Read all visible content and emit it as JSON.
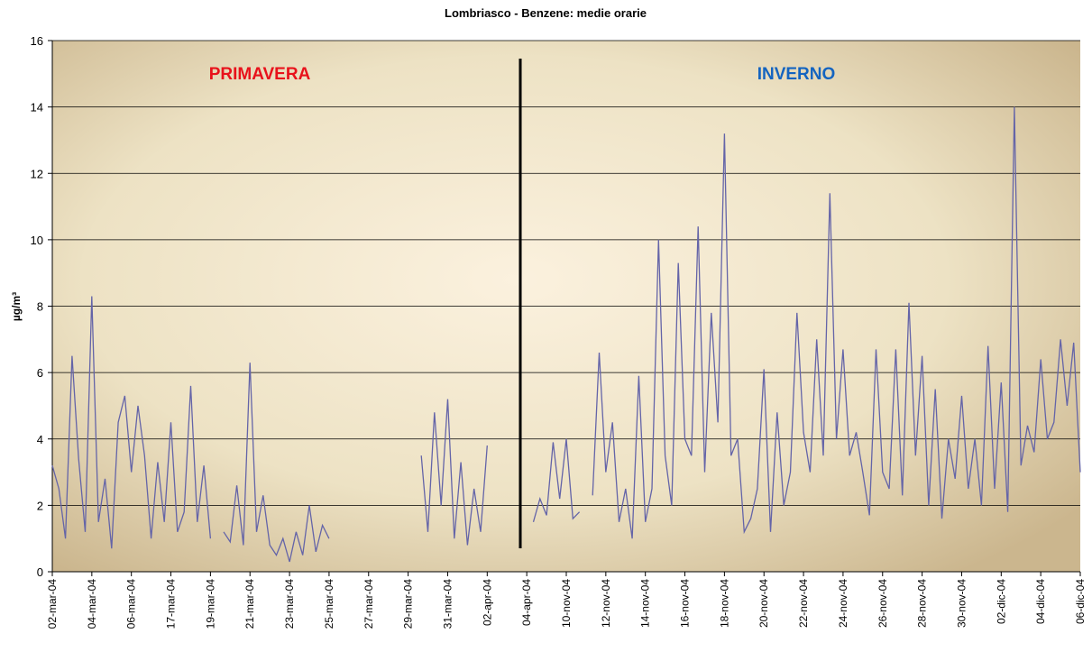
{
  "chart_data": {
    "type": "line",
    "title": "Lombriasco - Benzene: medie orarie",
    "y_label": "µg/m³",
    "annotations": [
      "PRIMAVERA",
      "INVERNO"
    ],
    "categories": [
      "02-mar-04",
      null,
      null,
      null,
      null,
      null,
      "04-mar-04",
      null,
      null,
      null,
      null,
      null,
      "06-mar-04",
      null,
      null,
      null,
      null,
      null,
      "17-mar-04",
      null,
      null,
      null,
      null,
      null,
      "19-mar-04",
      null,
      null,
      null,
      null,
      null,
      "21-mar-04",
      null,
      null,
      null,
      null,
      null,
      "23-mar-04",
      null,
      null,
      null,
      null,
      null,
      "25-mar-04",
      null,
      null,
      null,
      null,
      null,
      "27-mar-04",
      null,
      null,
      null,
      null,
      null,
      "29-mar-04",
      null,
      null,
      null,
      null,
      null,
      "31-mar-04",
      null,
      null,
      null,
      null,
      null,
      "02-apr-04",
      null,
      null,
      null,
      null,
      null,
      "04-apr-04",
      null,
      null,
      null,
      null,
      null,
      "10-nov-04",
      null,
      null,
      null,
      null,
      null,
      "12-nov-04",
      null,
      null,
      null,
      null,
      null,
      "14-nov-04",
      null,
      null,
      null,
      null,
      null,
      "16-nov-04",
      null,
      null,
      null,
      null,
      null,
      "18-nov-04",
      null,
      null,
      null,
      null,
      null,
      "20-nov-04",
      null,
      null,
      null,
      null,
      null,
      "22-nov-04",
      null,
      null,
      null,
      null,
      null,
      "24-nov-04",
      null,
      null,
      null,
      null,
      null,
      "26-nov-04",
      null,
      null,
      null,
      null,
      null,
      "28-nov-04",
      null,
      null,
      null,
      null,
      null,
      "30-nov-04",
      null,
      null,
      null,
      null,
      null,
      "02-dic-04",
      null,
      null,
      null,
      null,
      null,
      "04-dic-04",
      null,
      null,
      null,
      null,
      null,
      "06-dic-04"
    ],
    "series": [
      {
        "color": "#6464a8",
        "values": [
          3.2,
          2.5,
          1.0,
          6.5,
          3.4,
          1.2,
          8.3,
          1.5,
          2.8,
          0.7,
          4.5,
          5.3,
          3.0,
          5.0,
          3.5,
          1.0,
          3.3,
          1.5,
          4.5,
          1.2,
          1.8,
          5.6,
          1.5,
          3.2,
          1.0,
          null,
          1.2,
          0.9,
          2.6,
          0.8,
          6.3,
          1.2,
          2.3,
          0.8,
          0.5,
          1.0,
          0.3,
          1.2,
          0.5,
          2.0,
          0.6,
          1.4,
          1.0,
          null,
          null,
          null,
          null,
          null,
          null,
          null,
          null,
          null,
          null,
          null,
          null,
          null,
          3.5,
          1.2,
          4.8,
          2.0,
          5.2,
          1.0,
          3.3,
          0.8,
          2.5,
          1.2,
          3.8,
          null,
          null,
          null,
          null,
          null,
          null,
          1.5,
          2.2,
          1.7,
          3.9,
          2.2,
          4.0,
          1.6,
          1.8,
          null,
          2.3,
          6.6,
          3.0,
          4.5,
          1.5,
          2.5,
          1.0,
          5.9,
          1.5,
          2.5,
          10.0,
          3.5,
          2.0,
          9.3,
          4.0,
          3.5,
          10.4,
          3.0,
          7.8,
          4.5,
          13.2,
          3.5,
          4.0,
          1.2,
          1.6,
          2.5,
          6.1,
          1.2,
          4.8,
          2.0,
          3.0,
          7.8,
          4.2,
          3.0,
          7.0,
          3.5,
          11.4,
          4.0,
          6.7,
          3.5,
          4.2,
          3.0,
          1.7,
          6.7,
          3.0,
          2.5,
          6.7,
          2.3,
          8.1,
          3.5,
          6.5,
          2.0,
          5.5,
          1.6,
          4.0,
          2.8,
          5.3,
          2.5,
          4.0,
          2.0,
          6.8,
          2.5,
          5.7,
          1.8,
          14.0,
          3.2,
          4.4,
          3.6,
          6.4,
          4.0,
          4.5,
          7.0,
          5.0,
          6.9,
          3.0
        ]
      }
    ],
    "ylim": [
      0,
      16
    ],
    "yticks": [
      0,
      2,
      4,
      6,
      8,
      10,
      12,
      14,
      16
    ],
    "grid": true
  }
}
